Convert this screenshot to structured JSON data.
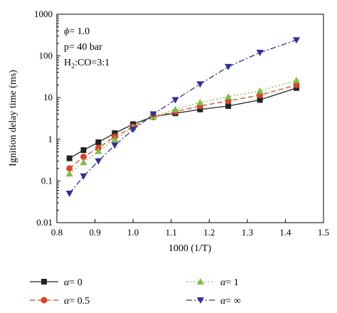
{
  "chart_data": {
    "type": "line",
    "xlabel": "1000 (1/T)",
    "ylabel": "Ignition delay time (ms)",
    "xlim": [
      0.8,
      1.5
    ],
    "ylim": [
      0.01,
      1000
    ],
    "yscale": "log",
    "grid": false,
    "legend_position": "bottom",
    "x_ticks": [
      "0.8",
      "0.9",
      "1.0",
      "1.1",
      "1.2",
      "1.3",
      "1.4",
      "1.5"
    ],
    "y_ticks": [
      "0.01",
      "0.1",
      "1",
      "10",
      "100",
      "1000"
    ],
    "annotations": {
      "phi": "= 1.0",
      "pressure": "p= 40 bar",
      "mixture_prefix": "H",
      "mixture_sub1": "2",
      "mixture_mid": ":CO=3:1"
    },
    "series": [
      {
        "name": "= 0",
        "color": "#222222",
        "marker": "square",
        "dash": "",
        "x": [
          0.833,
          0.87,
          0.909,
          0.952,
          1.0,
          1.053,
          1.111,
          1.176,
          1.25,
          1.333,
          1.429
        ],
        "y": [
          0.35,
          0.55,
          0.85,
          1.4,
          2.3,
          3.5,
          4.2,
          5.2,
          6.3,
          8.8,
          17
        ]
      },
      {
        "name": "= 0.5",
        "color": "#d9442a",
        "marker": "circle",
        "dash": "7,4",
        "x": [
          0.833,
          0.87,
          0.909,
          0.952,
          1.0,
          1.053,
          1.111,
          1.176,
          1.25,
          1.333,
          1.429
        ],
        "y": [
          0.2,
          0.38,
          0.62,
          1.15,
          2.0,
          3.4,
          4.6,
          6.3,
          8.3,
          11.5,
          20
        ]
      },
      {
        "name": "= 1",
        "color": "#7cbf3f",
        "marker": "triangle-up",
        "dash": "2,3",
        "x": [
          0.833,
          0.87,
          0.909,
          0.952,
          1.0,
          1.053,
          1.111,
          1.176,
          1.25,
          1.333,
          1.429
        ],
        "y": [
          0.15,
          0.28,
          0.52,
          1.0,
          1.9,
          3.5,
          5.2,
          7.6,
          10.5,
          14.5,
          26
        ]
      },
      {
        "name": "= ∞",
        "color": "#2f2f9e",
        "marker": "triangle-down",
        "dash": "8,3,2,3",
        "x": [
          0.833,
          0.87,
          0.909,
          0.952,
          1.0,
          1.053,
          1.111,
          1.176,
          1.25,
          1.333,
          1.429
        ],
        "y": [
          0.05,
          0.13,
          0.3,
          0.72,
          1.7,
          4.0,
          8.8,
          21,
          55,
          120,
          240
        ]
      }
    ]
  },
  "legend": {
    "alpha_symbol": "α"
  }
}
